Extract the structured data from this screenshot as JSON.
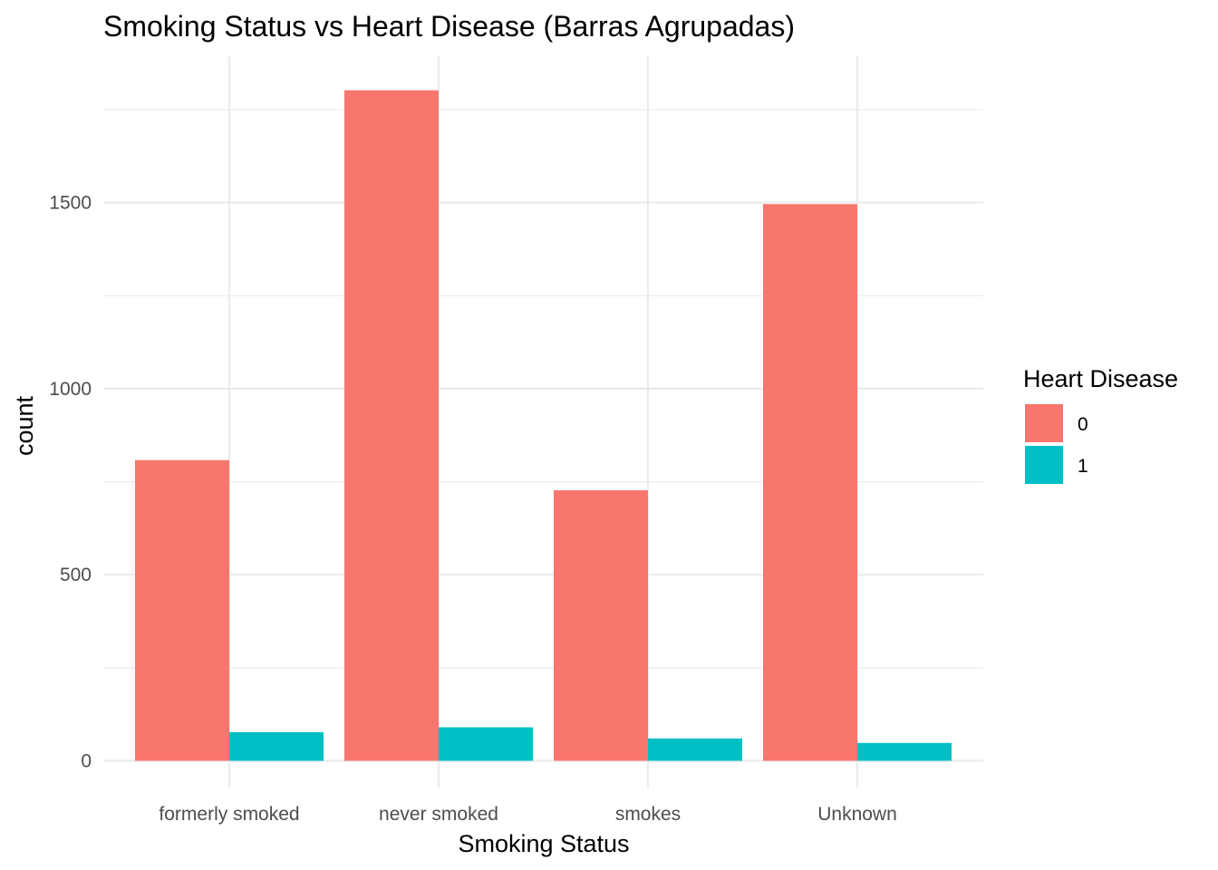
{
  "chart_data": {
    "type": "bar",
    "title": "Smoking Status vs Heart Disease (Barras Agrupadas)",
    "xlabel": "Smoking Status",
    "ylabel": "count",
    "categories": [
      "formerly smoked",
      "never smoked",
      "smokes",
      "Unknown"
    ],
    "series": [
      {
        "name": "0",
        "color": "#F8766D",
        "values": [
          808,
          1802,
          727,
          1496
        ]
      },
      {
        "name": "1",
        "color": "#00BFC4",
        "values": [
          77,
          90,
          60,
          48
        ]
      }
    ],
    "ylim": [
      0,
      1860
    ],
    "yticks": [
      0,
      500,
      1000,
      1500
    ],
    "grid": true,
    "legend": {
      "title": "Heart Disease",
      "position": "right"
    }
  }
}
